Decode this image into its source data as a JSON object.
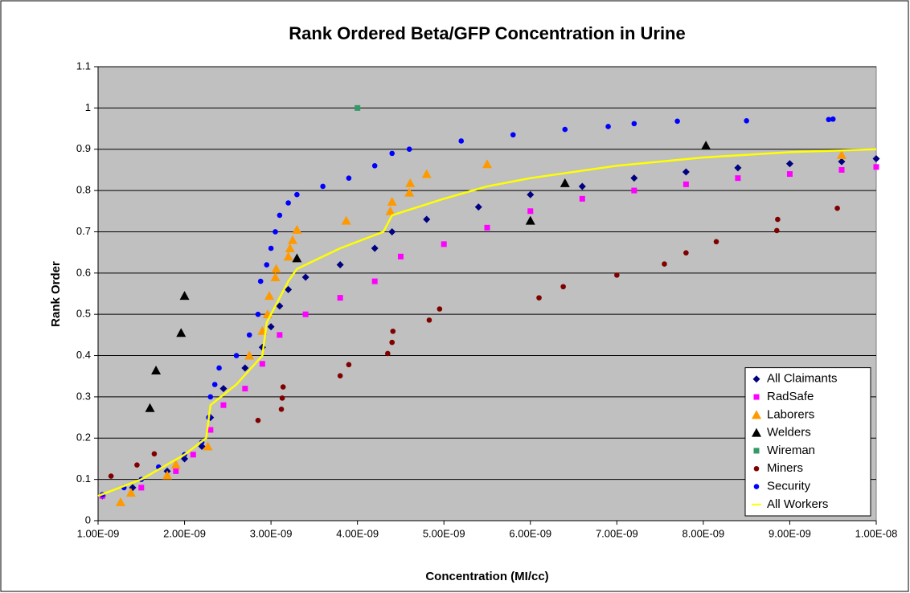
{
  "chart_data": {
    "type": "scatter",
    "title": "Rank Ordered Beta/GFP Concentration in Urine",
    "x_label": "Concentration (MI/cc)",
    "y_label": "Rank Order",
    "xlim": [
      1e-09,
      1e-08
    ],
    "ylim": [
      0,
      1.1
    ],
    "xticks": [
      {
        "value": 1e-09,
        "label": "1.00E-09"
      },
      {
        "value": 2e-09,
        "label": "2.00E-09"
      },
      {
        "value": 3e-09,
        "label": "3.00E-09"
      },
      {
        "value": 4e-09,
        "label": "4.00E-09"
      },
      {
        "value": 5e-09,
        "label": "5.00E-09"
      },
      {
        "value": 6e-09,
        "label": "6.00E-09"
      },
      {
        "value": 7e-09,
        "label": "7.00E-09"
      },
      {
        "value": 8e-09,
        "label": "8.00E-09"
      },
      {
        "value": 9e-09,
        "label": "9.00E-09"
      },
      {
        "value": 1e-08,
        "label": "1.00E-08"
      }
    ],
    "yticks": [
      0,
      0.1,
      0.2,
      0.3,
      0.4,
      0.5,
      0.6,
      0.7,
      0.8,
      0.9,
      1,
      1.1
    ],
    "grid": true,
    "legend": "lower-right",
    "series": [
      {
        "name": "All Claimants",
        "color": "#000080",
        "marker": "diamond",
        "x": [
          1.05e-09,
          1.4e-09,
          1.8e-09,
          2e-09,
          2.2e-09,
          2.3e-09,
          2.45e-09,
          2.7e-09,
          2.9e-09,
          3e-09,
          3.1e-09,
          3.2e-09,
          3.4e-09,
          3.8e-09,
          4.2e-09,
          4.4e-09,
          4.8e-09,
          5.4e-09,
          6e-09,
          6.6e-09,
          7.2e-09,
          7.8e-09,
          8.4e-09,
          9e-09,
          9.6e-09,
          1e-08
        ],
        "values": [
          0.06,
          0.08,
          0.12,
          0.15,
          0.18,
          0.25,
          0.32,
          0.37,
          0.42,
          0.47,
          0.52,
          0.56,
          0.59,
          0.62,
          0.66,
          0.7,
          0.73,
          0.76,
          0.79,
          0.81,
          0.83,
          0.845,
          0.855,
          0.865,
          0.87,
          0.877
        ]
      },
      {
        "name": "RadSafe",
        "color": "#ff00ff",
        "marker": "square",
        "x": [
          1.05e-09,
          1.5e-09,
          1.9e-09,
          2.1e-09,
          2.3e-09,
          2.45e-09,
          2.7e-09,
          2.9e-09,
          3.1e-09,
          3.4e-09,
          3.8e-09,
          4.2e-09,
          4.5e-09,
          5e-09,
          5.5e-09,
          6e-09,
          6.6e-09,
          7.2e-09,
          7.8e-09,
          8.4e-09,
          9e-09,
          9.6e-09,
          1e-08
        ],
        "values": [
          0.06,
          0.08,
          0.12,
          0.16,
          0.22,
          0.28,
          0.32,
          0.38,
          0.45,
          0.5,
          0.54,
          0.58,
          0.64,
          0.67,
          0.71,
          0.75,
          0.78,
          0.8,
          0.815,
          0.83,
          0.84,
          0.85,
          0.857
        ]
      },
      {
        "name": "Laborers",
        "color": "#ff9900",
        "marker": "triangle",
        "x": [
          1.26e-09,
          1.38e-09,
          1.8e-09,
          1.9e-09,
          2.27e-09,
          2.75e-09,
          2.9e-09,
          2.96e-09,
          2.98e-09,
          3.05e-09,
          3.06e-09,
          3.2e-09,
          3.22e-09,
          3.25e-09,
          3.3e-09,
          3.87e-09,
          4.38e-09,
          4.4e-09,
          4.6e-09,
          4.61e-09,
          4.8e-09,
          5.5e-09,
          9.6e-09
        ],
        "values": [
          0.045,
          0.068,
          0.11,
          0.136,
          0.18,
          0.4,
          0.46,
          0.5,
          0.545,
          0.59,
          0.61,
          0.64,
          0.66,
          0.68,
          0.705,
          0.727,
          0.75,
          0.773,
          0.795,
          0.818,
          0.84,
          0.864,
          0.886
        ]
      },
      {
        "name": "Welders",
        "color": "#000000",
        "marker": "triangle",
        "x": [
          1.6e-09,
          1.67e-09,
          1.96e-09,
          2e-09,
          3.3e-09,
          6e-09,
          6.4e-09,
          8.03e-09
        ],
        "values": [
          0.273,
          0.364,
          0.455,
          0.545,
          0.636,
          0.727,
          0.818,
          0.909
        ]
      },
      {
        "name": "Wireman",
        "color": "#339966",
        "marker": "square",
        "x": [
          4e-09
        ],
        "values": [
          1
        ]
      },
      {
        "name": "Miners",
        "color": "#800000",
        "marker": "circle",
        "x": [
          1.15e-09,
          1.45e-09,
          1.65e-09,
          2.85e-09,
          3.12e-09,
          3.13e-09,
          3.14e-09,
          3.8e-09,
          3.9e-09,
          4.35e-09,
          4.4e-09,
          4.41e-09,
          4.83e-09,
          4.95e-09,
          6.1e-09,
          6.38e-09,
          7e-09,
          7.55e-09,
          7.8e-09,
          8.15e-09,
          8.85e-09,
          8.86e-09,
          9.55e-09
        ],
        "values": [
          0.108,
          0.135,
          0.162,
          0.243,
          0.27,
          0.297,
          0.324,
          0.351,
          0.378,
          0.405,
          0.432,
          0.459,
          0.486,
          0.513,
          0.54,
          0.567,
          0.595,
          0.622,
          0.649,
          0.676,
          0.703,
          0.73,
          0.757
        ]
      },
      {
        "name": "Security",
        "color": "#0000ff",
        "marker": "circle",
        "x": [
          1.05e-09,
          1.3e-09,
          1.5e-09,
          1.7e-09,
          2e-09,
          2.2e-09,
          2.28e-09,
          2.3e-09,
          2.35e-09,
          2.4e-09,
          2.6e-09,
          2.75e-09,
          2.85e-09,
          2.88e-09,
          2.95e-09,
          3e-09,
          3.05e-09,
          3.1e-09,
          3.2e-09,
          3.3e-09,
          3.6e-09,
          3.9e-09,
          4.2e-09,
          4.4e-09,
          4.6e-09,
          5.2e-09,
          5.8e-09,
          6.4e-09,
          6.9e-09,
          7.2e-09,
          7.7e-09,
          8.5e-09,
          9.45e-09,
          9.5e-09
        ],
        "values": [
          0.063,
          0.08,
          0.1,
          0.13,
          0.16,
          0.19,
          0.25,
          0.3,
          0.33,
          0.37,
          0.4,
          0.45,
          0.5,
          0.58,
          0.62,
          0.66,
          0.7,
          0.74,
          0.77,
          0.79,
          0.81,
          0.83,
          0.86,
          0.89,
          0.9,
          0.92,
          0.935,
          0.948,
          0.955,
          0.962,
          0.968,
          0.969,
          0.972,
          0.973
        ]
      },
      {
        "name": "All Workers",
        "color": "#ffff00",
        "marker": "line",
        "x": [
          1e-09,
          1.5e-09,
          2e-09,
          2.25e-09,
          2.3e-09,
          2.6e-09,
          2.9e-09,
          2.95e-09,
          3.2e-09,
          3.3e-09,
          3.8e-09,
          4.3e-09,
          4.4e-09,
          5e-09,
          5.5e-09,
          6e-09,
          7e-09,
          8e-09,
          9e-09,
          1e-08
        ],
        "values": [
          0.06,
          0.1,
          0.16,
          0.2,
          0.28,
          0.33,
          0.4,
          0.48,
          0.58,
          0.61,
          0.66,
          0.7,
          0.74,
          0.78,
          0.81,
          0.83,
          0.86,
          0.88,
          0.893,
          0.9
        ]
      }
    ]
  }
}
